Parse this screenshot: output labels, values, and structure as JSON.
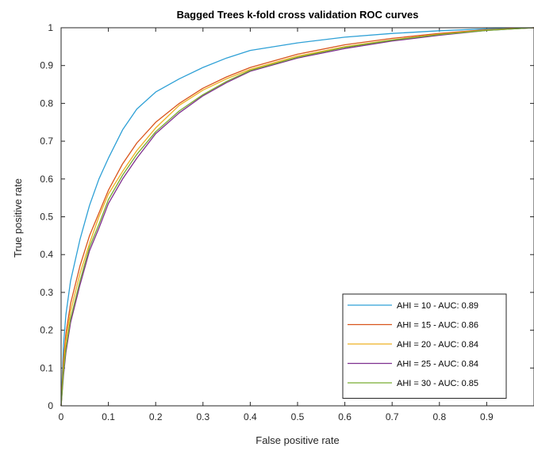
{
  "chart_data": {
    "type": "line",
    "title": "Bagged Trees k-fold cross validation ROC curves",
    "xlabel": "False positive rate",
    "ylabel": "True positive rate",
    "xlim": [
      0,
      1
    ],
    "ylim": [
      0,
      1
    ],
    "x_ticks": [
      "0",
      "0.1",
      "0.2",
      "0.3",
      "0.4",
      "0.5",
      "0.6",
      "0.7",
      "0.8",
      "0.9"
    ],
    "y_ticks": [
      "0",
      "0.1",
      "0.2",
      "0.3",
      "0.4",
      "0.5",
      "0.6",
      "0.7",
      "0.8",
      "0.9",
      "1"
    ],
    "grid": false,
    "legend_position": "bottom-right",
    "series": [
      {
        "name": "AHI = 10 - AUC: 0.89",
        "color": "#2ea0d6",
        "points": [
          [
            0,
            0
          ],
          [
            0.005,
            0.16
          ],
          [
            0.01,
            0.24
          ],
          [
            0.02,
            0.33
          ],
          [
            0.04,
            0.44
          ],
          [
            0.06,
            0.53
          ],
          [
            0.08,
            0.6
          ],
          [
            0.1,
            0.655
          ],
          [
            0.13,
            0.73
          ],
          [
            0.16,
            0.785
          ],
          [
            0.2,
            0.83
          ],
          [
            0.25,
            0.865
          ],
          [
            0.3,
            0.895
          ],
          [
            0.35,
            0.92
          ],
          [
            0.4,
            0.94
          ],
          [
            0.5,
            0.96
          ],
          [
            0.6,
            0.975
          ],
          [
            0.7,
            0.985
          ],
          [
            0.8,
            0.992
          ],
          [
            0.9,
            0.997
          ],
          [
            1,
            1
          ]
        ]
      },
      {
        "name": "AHI = 15 - AUC: 0.86",
        "color": "#d9541b",
        "points": [
          [
            0,
            0
          ],
          [
            0.005,
            0.12
          ],
          [
            0.01,
            0.19
          ],
          [
            0.02,
            0.27
          ],
          [
            0.04,
            0.37
          ],
          [
            0.06,
            0.45
          ],
          [
            0.08,
            0.51
          ],
          [
            0.1,
            0.57
          ],
          [
            0.13,
            0.64
          ],
          [
            0.16,
            0.695
          ],
          [
            0.2,
            0.75
          ],
          [
            0.25,
            0.8
          ],
          [
            0.3,
            0.84
          ],
          [
            0.35,
            0.87
          ],
          [
            0.4,
            0.895
          ],
          [
            0.5,
            0.93
          ],
          [
            0.6,
            0.955
          ],
          [
            0.7,
            0.972
          ],
          [
            0.8,
            0.985
          ],
          [
            0.9,
            0.995
          ],
          [
            1,
            1
          ]
        ]
      },
      {
        "name": "AHI = 20 - AUC: 0.84",
        "color": "#edb120",
        "points": [
          [
            0,
            0
          ],
          [
            0.005,
            0.1
          ],
          [
            0.01,
            0.17
          ],
          [
            0.02,
            0.25
          ],
          [
            0.04,
            0.35
          ],
          [
            0.06,
            0.43
          ],
          [
            0.08,
            0.5
          ],
          [
            0.1,
            0.56
          ],
          [
            0.13,
            0.62
          ],
          [
            0.16,
            0.675
          ],
          [
            0.2,
            0.735
          ],
          [
            0.25,
            0.795
          ],
          [
            0.3,
            0.835
          ],
          [
            0.35,
            0.865
          ],
          [
            0.4,
            0.89
          ],
          [
            0.5,
            0.925
          ],
          [
            0.6,
            0.95
          ],
          [
            0.7,
            0.968
          ],
          [
            0.8,
            0.983
          ],
          [
            0.9,
            0.994
          ],
          [
            1,
            1
          ]
        ]
      },
      {
        "name": "AHI = 25 - AUC: 0.84",
        "color": "#7e2f8e",
        "points": [
          [
            0,
            0
          ],
          [
            0.005,
            0.08
          ],
          [
            0.01,
            0.14
          ],
          [
            0.02,
            0.22
          ],
          [
            0.04,
            0.32
          ],
          [
            0.06,
            0.41
          ],
          [
            0.08,
            0.47
          ],
          [
            0.1,
            0.535
          ],
          [
            0.13,
            0.6
          ],
          [
            0.16,
            0.655
          ],
          [
            0.2,
            0.72
          ],
          [
            0.25,
            0.775
          ],
          [
            0.3,
            0.82
          ],
          [
            0.35,
            0.855
          ],
          [
            0.4,
            0.885
          ],
          [
            0.5,
            0.92
          ],
          [
            0.6,
            0.945
          ],
          [
            0.7,
            0.965
          ],
          [
            0.8,
            0.98
          ],
          [
            0.9,
            0.993
          ],
          [
            1,
            1
          ]
        ]
      },
      {
        "name": "AHI = 30 - AUC: 0.85",
        "color": "#77ac30",
        "points": [
          [
            0,
            0
          ],
          [
            0.005,
            0.09
          ],
          [
            0.01,
            0.15
          ],
          [
            0.02,
            0.23
          ],
          [
            0.04,
            0.33
          ],
          [
            0.06,
            0.42
          ],
          [
            0.08,
            0.48
          ],
          [
            0.1,
            0.545
          ],
          [
            0.13,
            0.61
          ],
          [
            0.16,
            0.665
          ],
          [
            0.2,
            0.725
          ],
          [
            0.25,
            0.78
          ],
          [
            0.3,
            0.823
          ],
          [
            0.35,
            0.858
          ],
          [
            0.4,
            0.887
          ],
          [
            0.5,
            0.922
          ],
          [
            0.6,
            0.948
          ],
          [
            0.7,
            0.967
          ],
          [
            0.8,
            0.982
          ],
          [
            0.9,
            0.993
          ],
          [
            1,
            1
          ]
        ]
      }
    ]
  }
}
